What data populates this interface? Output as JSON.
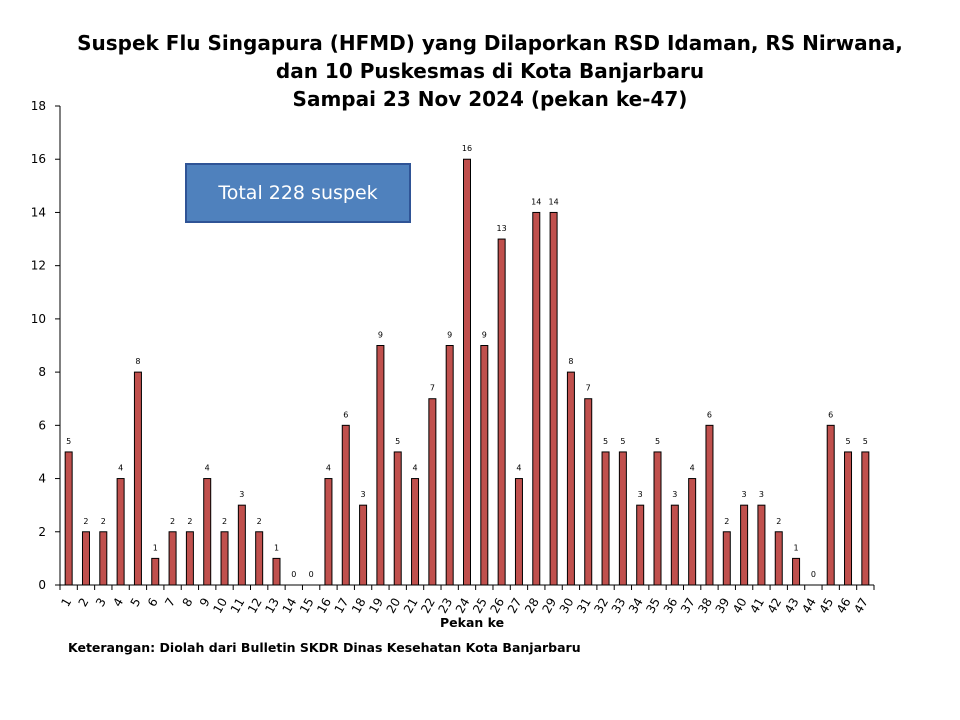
{
  "chart_data": {
    "type": "bar",
    "title_lines": [
      "Suspek Flu Singapura (HFMD) yang Dilaporkan RSD Idaman, RS Nirwana,",
      "dan 10 Puskesmas di Kota Banjarbaru",
      "Sampai 23 Nov 2024 (pekan ke-47)"
    ],
    "xlabel": "Pekan ke",
    "ylabel": "",
    "ylim": [
      0,
      18
    ],
    "yticks": [
      0,
      2,
      4,
      6,
      8,
      10,
      12,
      14,
      16,
      18
    ],
    "categories": [
      "1",
      "2",
      "3",
      "4",
      "5",
      "6",
      "7",
      "8",
      "9",
      "10",
      "11",
      "12",
      "13",
      "14",
      "15",
      "16",
      "17",
      "18",
      "19",
      "20",
      "21",
      "22",
      "23",
      "24",
      "25",
      "26",
      "27",
      "28",
      "29",
      "30",
      "31",
      "32",
      "33",
      "34",
      "35",
      "36",
      "37",
      "38",
      "39",
      "40",
      "41",
      "42",
      "43",
      "44",
      "45",
      "46",
      "47"
    ],
    "values": [
      5,
      2,
      2,
      4,
      8,
      1,
      2,
      2,
      4,
      2,
      3,
      2,
      1,
      0,
      0,
      4,
      6,
      3,
      9,
      5,
      4,
      7,
      9,
      16,
      9,
      13,
      4,
      14,
      14,
      8,
      7,
      5,
      5,
      3,
      5,
      3,
      4,
      6,
      2,
      3,
      3,
      2,
      1,
      0,
      6,
      5,
      5
    ],
    "bar_color": "#c0504d",
    "grid": false,
    "annotation": "Total 228 suspek",
    "footnote": "Keterangan: Diolah dari Bulletin SKDR Dinas Kesehatan Kota Banjarbaru"
  }
}
